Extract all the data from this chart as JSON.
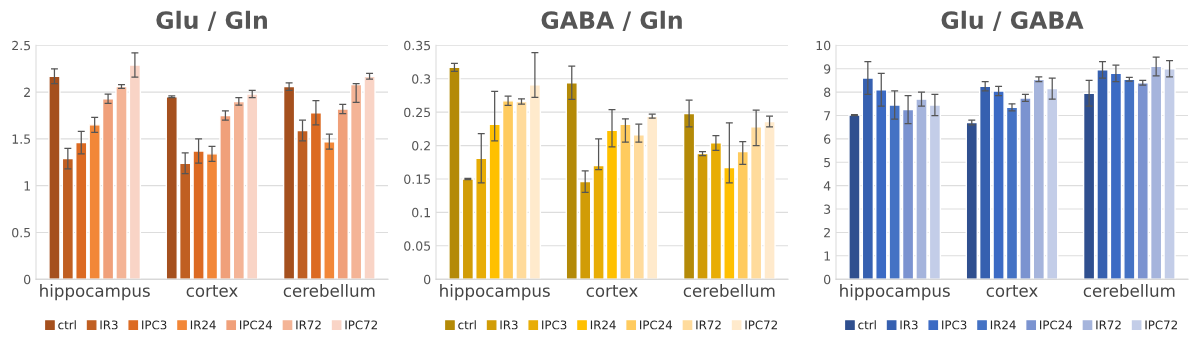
{
  "chart_data": [
    {
      "type": "bar",
      "title": "Glu / Gln",
      "categories": [
        "hippocampus",
        "cortex",
        "cerebellum"
      ],
      "ylim": [
        0,
        2.5
      ],
      "yticks": [
        0,
        0.5,
        1,
        1.5,
        2,
        2.5
      ],
      "grid": "y",
      "legend": "bottom",
      "series": [
        {
          "name": "ctrl",
          "color": "#a5501e",
          "values": [
            2.17,
            1.95,
            2.06
          ],
          "errors": [
            0.08,
            0.01,
            0.04
          ]
        },
        {
          "name": "IR3",
          "color": "#c05f22",
          "values": [
            1.29,
            1.24,
            1.59
          ],
          "errors": [
            0.11,
            0.11,
            0.11
          ]
        },
        {
          "name": "IPC3",
          "color": "#dc6a22",
          "values": [
            1.46,
            1.37,
            1.78
          ],
          "errors": [
            0.12,
            0.13,
            0.13
          ]
        },
        {
          "name": "IR24",
          "color": "#f28738",
          "values": [
            1.65,
            1.34,
            1.47
          ],
          "errors": [
            0.08,
            0.08,
            0.08
          ]
        },
        {
          "name": "IPC24",
          "color": "#f0a07a",
          "values": [
            1.93,
            1.75,
            1.82
          ],
          "errors": [
            0.05,
            0.05,
            0.05
          ]
        },
        {
          "name": "IR72",
          "color": "#f4b496",
          "values": [
            2.06,
            1.9,
            2.08
          ],
          "errors": [
            0.02,
            0.04,
            [
              1.89,
              2.09
            ]
          ]
        },
        {
          "name": "IPC72",
          "color": "#f9d4c6",
          "values": [
            2.29,
            1.98,
            2.17
          ],
          "errors": [
            0.13,
            0.04,
            0.03
          ]
        }
      ]
    },
    {
      "type": "bar",
      "title": "GABA / Gln",
      "categories": [
        "hippocampus",
        "cortex",
        "cerebellum"
      ],
      "ylim": [
        0,
        0.35
      ],
      "yticks": [
        0,
        0.05,
        0.1,
        0.15,
        0.2,
        0.25,
        0.3,
        0.35
      ],
      "grid": "y",
      "legend": "bottom",
      "series": [
        {
          "name": "ctrl",
          "color": "#b48a07",
          "values": [
            0.317,
            0.294,
            0.248
          ],
          "errors": [
            0.006,
            0.025,
            0.02
          ]
        },
        {
          "name": "IR3",
          "color": "#d19c06",
          "values": [
            0.15,
            0.146,
            0.188
          ],
          "errors": [
            0.001,
            0.016,
            0.003
          ]
        },
        {
          "name": "IPC3",
          "color": "#e8ad05",
          "values": [
            0.181,
            0.17,
            0.204
          ],
          "errors": [
            0.037,
            [
              0.164,
              0.21
            ],
            0.011
          ]
        },
        {
          "name": "IR24",
          "color": "#ffc000",
          "values": [
            0.232,
            0.223,
            0.167
          ],
          "errors": [
            [
              0.207,
              0.281
            ],
            [
              0.198,
              0.254
            ],
            [
              0.144,
              0.234
            ]
          ]
        },
        {
          "name": "IPC24",
          "color": "#ffcb5e",
          "values": [
            0.267,
            0.232,
            0.191
          ],
          "errors": [
            0.007,
            [
              0.205,
              0.24
            ],
            [
              0.172,
              0.206
            ]
          ]
        },
        {
          "name": "IR72",
          "color": "#ffdb9c",
          "values": [
            0.266,
            0.216,
            0.228
          ],
          "errors": [
            0.004,
            [
              0.205,
              0.232
            ],
            [
              0.2,
              0.253
            ]
          ]
        },
        {
          "name": "IPC72",
          "color": "#ffeacc",
          "values": [
            0.291,
            0.244,
            0.236
          ],
          "errors": [
            [
              0.272,
              0.339
            ],
            0.003,
            0.008
          ]
        }
      ]
    },
    {
      "type": "bar",
      "title": "Glu / GABA",
      "categories": [
        "hippocampus",
        "cortex",
        "cerebellum"
      ],
      "ylim": [
        0,
        10
      ],
      "yticks": [
        0,
        1,
        2,
        3,
        4,
        5,
        6,
        7,
        8,
        9,
        10
      ],
      "grid": "y",
      "legend": "bottom",
      "series": [
        {
          "name": "ctrl",
          "color": "#2f4f8f",
          "values": [
            7.02,
            6.7,
            7.95
          ],
          "errors": [
            0.02,
            0.1,
            0.55
          ]
        },
        {
          "name": "IR3",
          "color": "#3660b0",
          "values": [
            8.6,
            8.25,
            8.95
          ],
          "errors": [
            0.7,
            0.2,
            0.35
          ]
        },
        {
          "name": "IPC3",
          "color": "#3b6ac4",
          "values": [
            8.1,
            8.05,
            8.8
          ],
          "errors": [
            0.7,
            0.2,
            0.35
          ]
        },
        {
          "name": "IR24",
          "color": "#4472c4",
          "values": [
            7.45,
            7.35,
            8.55
          ],
          "errors": [
            0.6,
            0.15,
            0.08
          ]
        },
        {
          "name": "IPC24",
          "color": "#7b93d0",
          "values": [
            7.25,
            7.75,
            8.4
          ],
          "errors": [
            0.6,
            0.15,
            0.1
          ]
        },
        {
          "name": "IR72",
          "color": "#a5b4dc",
          "values": [
            7.7,
            8.55,
            9.1
          ],
          "errors": [
            0.3,
            0.1,
            0.4
          ]
        },
        {
          "name": "IPC72",
          "color": "#c3cde8",
          "values": [
            7.45,
            8.15,
            9.0
          ],
          "errors": [
            0.45,
            0.45,
            0.35
          ]
        }
      ]
    }
  ]
}
